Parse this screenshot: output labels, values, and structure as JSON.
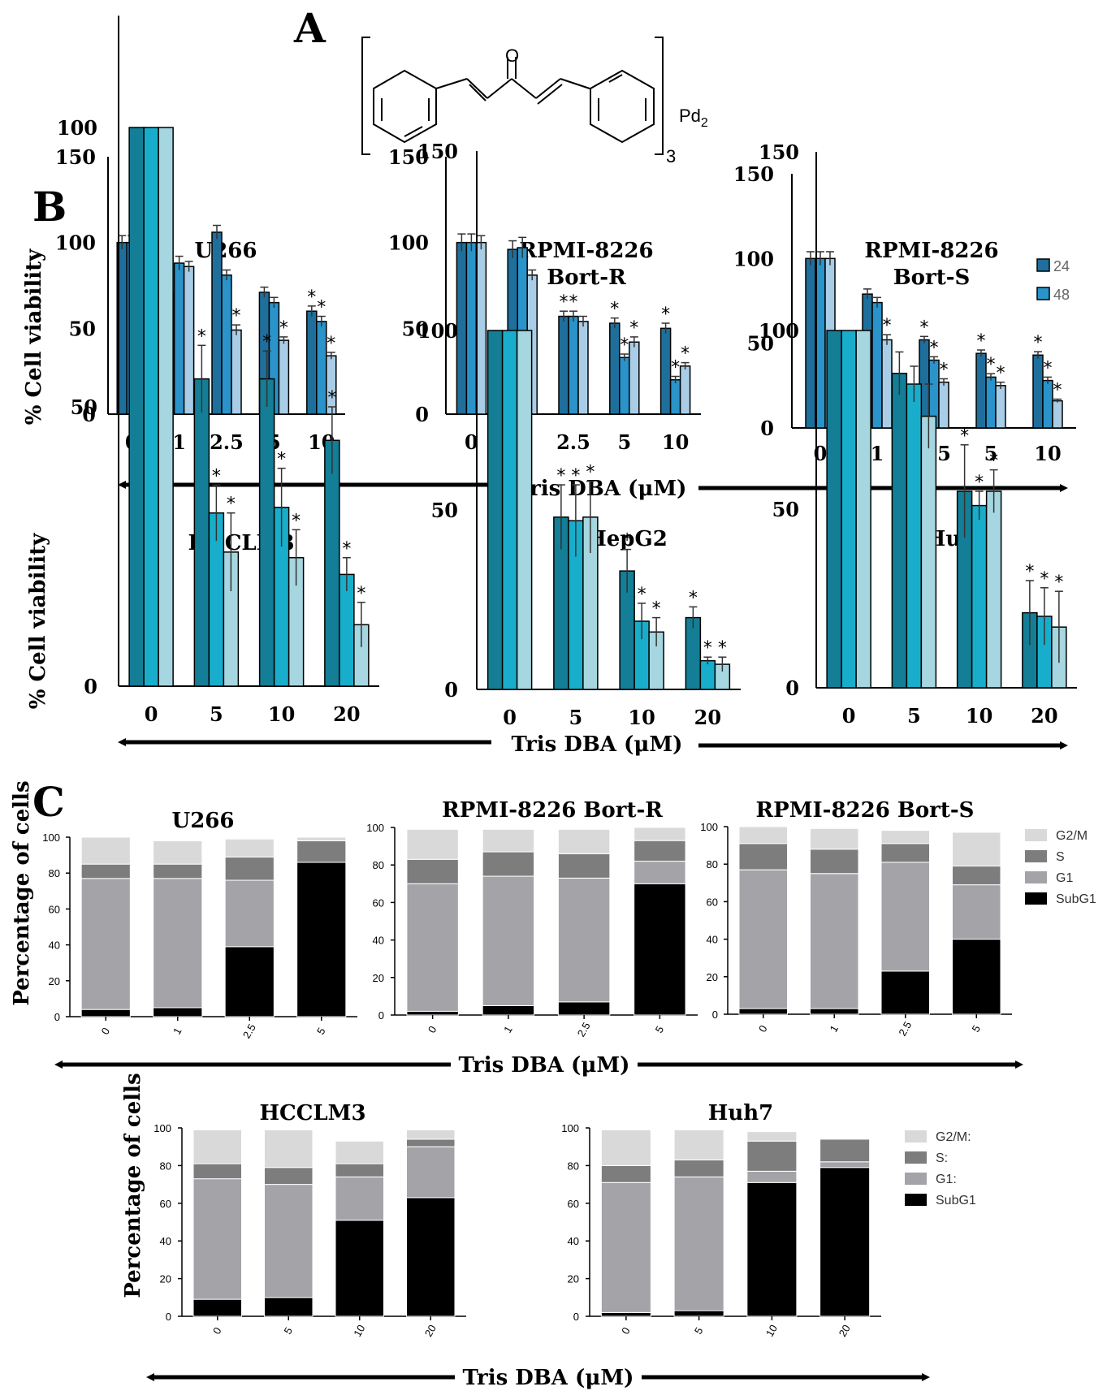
{
  "panels": {
    "a": "A",
    "b": "B",
    "c": "C"
  },
  "structure": {
    "oxygen": "O",
    "metal": "Pd",
    "metal_sub": "2",
    "repeat_sub": "3"
  },
  "axis_titles": {
    "viability": "% Cell viability",
    "percentage": "Percentage of cells",
    "tris": "Tris DBA (μM)"
  },
  "legend_b": [
    "24",
    "48"
  ],
  "legend_c1": [
    "G2/M",
    "S",
    "G1",
    "SubG1"
  ],
  "legend_c2": [
    "G2/M:",
    "S:",
    "G1:",
    "SubG1"
  ],
  "colors": {
    "dark_blue": "#1f6f9c",
    "mid_blue": "#2a93c9",
    "light_blue": "#a9cde6",
    "dark_teal": "#137e95",
    "mid_teal": "#18aecb",
    "light_teal": "#a6d6e0",
    "g2m": "#d9d9d9",
    "s": "#7d7d7d",
    "g1": "#a3a3a8",
    "subg1": "#000000"
  },
  "chart_data": [
    {
      "id": "b1",
      "type": "bar",
      "title": [
        "U266"
      ],
      "ylabel": "% Cell viability",
      "ylim": [
        0,
        150
      ],
      "yticks": [
        0,
        50,
        100,
        150
      ],
      "categories": [
        "0",
        "1",
        "2.5",
        "5",
        "10"
      ],
      "series": [
        {
          "name": "s1",
          "values": [
            100,
            71,
            106,
            71,
            60
          ],
          "err": [
            4,
            3,
            4,
            3,
            3
          ]
        },
        {
          "name": "s2",
          "values": [
            100,
            88,
            81,
            65,
            54
          ],
          "err": [
            4,
            4,
            3,
            3,
            3
          ]
        },
        {
          "name": "s3",
          "values": [
            100,
            86,
            49,
            43,
            34
          ],
          "err": [
            4,
            3,
            3,
            2,
            2
          ]
        }
      ],
      "stars": [
        [
          false,
          false,
          false
        ],
        [
          false,
          false,
          false
        ],
        [
          false,
          false,
          true
        ],
        [
          false,
          false,
          true
        ],
        [
          true,
          true,
          true
        ]
      ]
    },
    {
      "id": "b2",
      "type": "bar",
      "title": [
        "RPMI-8226",
        "Bort-R"
      ],
      "ylim": [
        0,
        150
      ],
      "yticks": [
        0,
        50,
        100,
        150
      ],
      "categories": [
        "0",
        "1",
        "2.5",
        "5",
        "10"
      ],
      "series": [
        {
          "name": "s1",
          "values": [
            100,
            96,
            57,
            53,
            50
          ],
          "err": [
            5,
            5,
            3,
            3,
            3
          ]
        },
        {
          "name": "s2",
          "values": [
            100,
            97,
            57,
            33,
            20
          ],
          "err": [
            5,
            6,
            3,
            2,
            2
          ]
        },
        {
          "name": "s3",
          "values": [
            100,
            81,
            54,
            42,
            28
          ],
          "err": [
            4,
            3,
            3,
            3,
            2
          ]
        }
      ],
      "stars": [
        [
          false,
          false,
          false
        ],
        [
          false,
          false,
          false
        ],
        [
          true,
          true,
          false
        ],
        [
          true,
          true,
          true
        ],
        [
          true,
          true,
          true
        ]
      ]
    },
    {
      "id": "b3",
      "type": "bar",
      "title": [
        "RPMI-8226",
        "Bort-S"
      ],
      "ylim": [
        0,
        150
      ],
      "yticks": [
        0,
        50,
        100,
        150
      ],
      "categories": [
        "0",
        "1",
        "2.5",
        "5",
        "10"
      ],
      "legend": [
        "24",
        "48"
      ],
      "series": [
        {
          "name": "24",
          "values": [
            100,
            79,
            52,
            44,
            43
          ],
          "err": [
            4,
            3,
            2,
            2,
            2
          ]
        },
        {
          "name": "48",
          "values": [
            100,
            74,
            40,
            30,
            28
          ],
          "err": [
            4,
            3,
            2,
            2,
            2
          ]
        },
        {
          "name": "s3",
          "values": [
            100,
            52,
            27,
            25,
            16
          ],
          "err": [
            4,
            3,
            2,
            2,
            1
          ]
        }
      ],
      "stars": [
        [
          false,
          false,
          false
        ],
        [
          false,
          false,
          true
        ],
        [
          true,
          true,
          true
        ],
        [
          true,
          true,
          true
        ],
        [
          true,
          true,
          true
        ]
      ]
    },
    {
      "id": "b4",
      "type": "bar",
      "title": [
        "HCCLM3"
      ],
      "ylabel": "% Cell viability",
      "ylim": [
        0,
        120
      ],
      "yticks": [
        0,
        50,
        100
      ],
      "categories": [
        "0",
        "5",
        "10",
        "20"
      ],
      "series": [
        {
          "name": "s1",
          "values": [
            100,
            55,
            55,
            44
          ],
          "err": [
            0,
            6,
            5,
            6
          ]
        },
        {
          "name": "s2",
          "values": [
            100,
            31,
            32,
            20
          ],
          "err": [
            0,
            5,
            7,
            3
          ]
        },
        {
          "name": "s3",
          "values": [
            100,
            24,
            23,
            11
          ],
          "err": [
            0,
            7,
            5,
            4
          ]
        }
      ],
      "stars": [
        [
          false,
          false,
          false
        ],
        [
          true,
          true,
          true
        ],
        [
          true,
          true,
          true
        ],
        [
          true,
          true,
          true
        ]
      ]
    },
    {
      "id": "b5",
      "type": "bar",
      "title": [
        "HepG2"
      ],
      "ylim": [
        0,
        150
      ],
      "yticks": [
        0,
        50,
        100,
        150
      ],
      "categories": [
        "0",
        "5",
        "10",
        "20"
      ],
      "series": [
        {
          "name": "s1",
          "values": [
            100,
            48,
            33,
            20
          ],
          "err": [
            0,
            9,
            6,
            3
          ]
        },
        {
          "name": "s2",
          "values": [
            100,
            47,
            19,
            8
          ],
          "err": [
            0,
            10,
            5,
            1
          ]
        },
        {
          "name": "s3",
          "values": [
            100,
            48,
            16,
            7
          ],
          "err": [
            0,
            10,
            4,
            2
          ]
        }
      ],
      "stars": [
        [
          false,
          false,
          false
        ],
        [
          true,
          true,
          true
        ],
        [
          true,
          true,
          true
        ],
        [
          true,
          true,
          true
        ]
      ]
    },
    {
      "id": "b6",
      "type": "bar",
      "title": [
        "Huh7"
      ],
      "ylim": [
        0,
        150
      ],
      "yticks": [
        0,
        50,
        100,
        150
      ],
      "categories": [
        "0",
        "5",
        "10",
        "20"
      ],
      "series": [
        {
          "name": "s1",
          "values": [
            100,
            88,
            55,
            21
          ],
          "err": [
            0,
            6,
            13,
            9
          ]
        },
        {
          "name": "s2",
          "values": [
            100,
            85,
            51,
            20
          ],
          "err": [
            0,
            5,
            4,
            8
          ]
        },
        {
          "name": "s3",
          "values": [
            100,
            76,
            55,
            17
          ],
          "err": [
            0,
            9,
            6,
            10
          ]
        }
      ],
      "stars": [
        [
          false,
          false,
          false
        ],
        [
          false,
          false,
          false
        ],
        [
          true,
          true,
          true
        ],
        [
          true,
          true,
          true
        ]
      ]
    },
    {
      "id": "c1",
      "type": "stacked-bar",
      "title": "U266",
      "ylabel": "Percentage of cells",
      "ylim": [
        0,
        100
      ],
      "categories": [
        "0",
        "1",
        "2.5",
        "5"
      ],
      "series": [
        {
          "name": "SubG1",
          "values": [
            4,
            5,
            39,
            86
          ]
        },
        {
          "name": "G1",
          "values": [
            73,
            72,
            37,
            0
          ]
        },
        {
          "name": "S",
          "values": [
            8,
            8,
            13,
            12
          ]
        },
        {
          "name": "G2/M",
          "values": [
            15,
            13,
            10,
            2
          ]
        }
      ]
    },
    {
      "id": "c2",
      "type": "stacked-bar",
      "title": "RPMI-8226 Bort-R",
      "ylim": [
        0,
        100
      ],
      "categories": [
        "0",
        "1",
        "2.5",
        "5"
      ],
      "series": [
        {
          "name": "SubG1",
          "values": [
            2,
            5,
            7,
            70
          ]
        },
        {
          "name": "G1",
          "values": [
            68,
            69,
            66,
            12
          ]
        },
        {
          "name": "S",
          "values": [
            13,
            13,
            13,
            11
          ]
        },
        {
          "name": "G2/M",
          "values": [
            16,
            12,
            13,
            7
          ]
        }
      ]
    },
    {
      "id": "c3",
      "type": "stacked-bar",
      "title": "RPMI-8226 Bort-S",
      "ylim": [
        0,
        100
      ],
      "categories": [
        "0",
        "1",
        "2.5",
        "5"
      ],
      "legend": [
        "G2/M",
        "S",
        "G1",
        "SubG1"
      ],
      "series": [
        {
          "name": "SubG1",
          "values": [
            3,
            3,
            23,
            40
          ]
        },
        {
          "name": "G1",
          "values": [
            74,
            72,
            58,
            29
          ]
        },
        {
          "name": "S",
          "values": [
            14,
            13,
            10,
            10
          ]
        },
        {
          "name": "G2/M",
          "values": [
            9,
            11,
            7,
            18
          ]
        }
      ]
    },
    {
      "id": "c4",
      "type": "stacked-bar",
      "title": "HCCLM3",
      "ylabel": "Percentage of cells",
      "ylim": [
        0,
        100
      ],
      "categories": [
        "0",
        "5",
        "10",
        "20"
      ],
      "series": [
        {
          "name": "SubG1",
          "values": [
            9,
            10,
            51,
            63
          ]
        },
        {
          "name": "G1",
          "values": [
            64,
            60,
            23,
            27
          ]
        },
        {
          "name": "S",
          "values": [
            8,
            9,
            7,
            4
          ]
        },
        {
          "name": "G2/M",
          "values": [
            18,
            20,
            12,
            5
          ]
        }
      ]
    },
    {
      "id": "c5",
      "type": "stacked-bar",
      "title": "Huh7",
      "ylim": [
        0,
        100
      ],
      "categories": [
        "0",
        "5",
        "10",
        "20"
      ],
      "legend": [
        "G2/M:",
        "S:",
        "G1:",
        "SubG1"
      ],
      "series": [
        {
          "name": "SubG1",
          "values": [
            2,
            3,
            71,
            79
          ]
        },
        {
          "name": "G1",
          "values": [
            69,
            71,
            6,
            3
          ]
        },
        {
          "name": "S",
          "values": [
            9,
            9,
            16,
            12
          ]
        },
        {
          "name": "G2/M",
          "values": [
            19,
            16,
            5,
            0
          ]
        }
      ]
    }
  ]
}
